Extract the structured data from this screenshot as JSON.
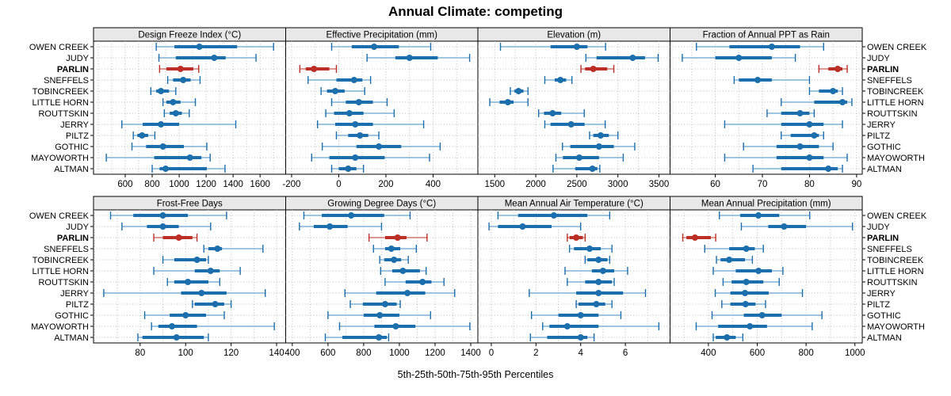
{
  "title": "Annual Climate: competing",
  "caption": "5th-25th-50th-75th-95th Percentiles",
  "stations": [
    "OWEN CREEK",
    "JUDY",
    "PARLIN",
    "SNEFFELS",
    "TOBINCREEK",
    "LITTLE HORN",
    "ROUTTSKIN",
    "JERRY",
    "PILTZ",
    "GOTHIC",
    "MAYOWORTH",
    "ALTMAN"
  ],
  "highlight_station": "PARLIN",
  "colors": {
    "blue": "#1c6fad",
    "blue_light": "#7fb3d6",
    "red": "#bb2f26",
    "red_light": "#d4766f",
    "header_bg": "#e8e8e8",
    "grid": "#bdbdbd",
    "border": "#000000"
  },
  "chart_data": {
    "type": "dotplot-percentiles",
    "percentiles": [
      5,
      25,
      50,
      75,
      95
    ],
    "grid": "dotted",
    "legend_position": "none",
    "panels": [
      {
        "title": "Design Freeze Index (°C)",
        "row": 0,
        "col": 0,
        "xlim": [
          365,
          1790
        ],
        "ticks": [
          600,
          800,
          1000,
          1200,
          1400,
          1600
        ],
        "grid_step": 100,
        "values": [
          [
            830,
            965,
            1150,
            1430,
            1700
          ],
          [
            850,
            975,
            1260,
            1345,
            1570
          ],
          [
            855,
            905,
            1010,
            1105,
            1145
          ],
          [
            915,
            955,
            1030,
            1085,
            1155
          ],
          [
            790,
            830,
            865,
            925,
            975
          ],
          [
            880,
            905,
            955,
            1010,
            1120
          ],
          [
            890,
            930,
            975,
            1020,
            1075
          ],
          [
            575,
            730,
            865,
            1000,
            1420
          ],
          [
            660,
            690,
            725,
            770,
            820
          ],
          [
            650,
            755,
            880,
            1035,
            1205
          ],
          [
            460,
            815,
            1080,
            1165,
            1230
          ],
          [
            800,
            855,
            900,
            1205,
            1340
          ]
        ]
      },
      {
        "title": "Effective Precipitation (mm)",
        "row": 0,
        "col": 1,
        "xlim": [
          -225,
          590
        ],
        "ticks": [
          -200,
          0,
          200,
          400
        ],
        "grid_step": 100,
        "values": [
          [
            -30,
            55,
            150,
            255,
            390
          ],
          [
            120,
            240,
            300,
            420,
            555
          ],
          [
            -165,
            -140,
            -105,
            -40,
            -10
          ],
          [
            -130,
            -10,
            65,
            100,
            135
          ],
          [
            -75,
            -50,
            -15,
            25,
            110
          ],
          [
            -30,
            30,
            85,
            145,
            205
          ],
          [
            -55,
            -20,
            45,
            105,
            235
          ],
          [
            -90,
            -15,
            70,
            145,
            360
          ],
          [
            -10,
            40,
            90,
            125,
            170
          ],
          [
            -70,
            75,
            170,
            265,
            430
          ],
          [
            -115,
            -40,
            70,
            195,
            385
          ],
          [
            -30,
            0,
            40,
            75,
            105
          ]
        ]
      },
      {
        "title": "Elevation (m)",
        "row": 0,
        "col": 2,
        "xlim": [
          1295,
          3635
        ],
        "ticks": [
          1500,
          2000,
          2500,
          3000,
          3500
        ],
        "grid_step": 250,
        "values": [
          [
            1570,
            2180,
            2500,
            2630,
            2850
          ],
          [
            2610,
            2740,
            3180,
            3330,
            3490
          ],
          [
            2550,
            2600,
            2700,
            2870,
            2950
          ],
          [
            2110,
            2230,
            2300,
            2370,
            2440
          ],
          [
            1690,
            1740,
            1790,
            1850,
            1905
          ],
          [
            1440,
            1560,
            1660,
            1730,
            1905
          ],
          [
            2035,
            2100,
            2205,
            2310,
            2590
          ],
          [
            2110,
            2180,
            2430,
            2595,
            2845
          ],
          [
            2655,
            2700,
            2790,
            2890,
            3000
          ],
          [
            2325,
            2420,
            2770,
            2950,
            3205
          ],
          [
            2245,
            2330,
            2530,
            2770,
            3065
          ],
          [
            2210,
            2480,
            2690,
            2750,
            2780
          ]
        ]
      },
      {
        "title": "Fraction of Annual PPT as Rain",
        "row": 0,
        "col": 3,
        "xlim": [
          50.4,
          91.2
        ],
        "ticks": [
          60,
          70,
          80,
          90
        ],
        "grid_step": 5,
        "values": [
          [
            56,
            63,
            72,
            78,
            83
          ],
          [
            53,
            60,
            65,
            72,
            77
          ],
          [
            82,
            84,
            86,
            87,
            88
          ],
          [
            64,
            65,
            69,
            72,
            80
          ],
          [
            80,
            82,
            85,
            86,
            87
          ],
          [
            74,
            81,
            87,
            88,
            89
          ],
          [
            71,
            74,
            78,
            80,
            81
          ],
          [
            62,
            74,
            80,
            83,
            87
          ],
          [
            74,
            76,
            81,
            82,
            83
          ],
          [
            66,
            73,
            78,
            82,
            85
          ],
          [
            62,
            73,
            80,
            83,
            88
          ],
          [
            68,
            74,
            84,
            86,
            87
          ]
        ]
      },
      {
        "title": "Frost-Free Days",
        "row": 1,
        "col": 0,
        "xlim": [
          59.5,
          144
        ],
        "ticks": [
          80,
          100,
          120,
          140
        ],
        "grid_step": 10,
        "values": [
          [
            67,
            77,
            90,
            101,
            118
          ],
          [
            72,
            83,
            90,
            97,
            111
          ],
          [
            86,
            90,
            97,
            103,
            105
          ],
          [
            108,
            110,
            114,
            116,
            134
          ],
          [
            90,
            95,
            105,
            109,
            110
          ],
          [
            86,
            104,
            111,
            115,
            124
          ],
          [
            92,
            95,
            101,
            110,
            115
          ],
          [
            64,
            98,
            107,
            118,
            135
          ],
          [
            103,
            104,
            113,
            117,
            120
          ],
          [
            82,
            93,
            100,
            109,
            117
          ],
          [
            85,
            88,
            94,
            105,
            139
          ],
          [
            79,
            81,
            96,
            108,
            110
          ]
        ]
      },
      {
        "title": "Growing Degree Days (°C)",
        "row": 1,
        "col": 1,
        "xlim": [
          363,
          1440
        ],
        "ticks": [
          400,
          600,
          800,
          1000,
          1200,
          1400
        ],
        "grid_step": 100,
        "values": [
          [
            465,
            565,
            730,
            915,
            1060
          ],
          [
            440,
            520,
            610,
            710,
            900
          ],
          [
            830,
            920,
            990,
            1040,
            1155
          ],
          [
            855,
            920,
            955,
            1005,
            1095
          ],
          [
            890,
            915,
            970,
            1010,
            1050
          ],
          [
            895,
            960,
            1020,
            1115,
            1150
          ],
          [
            920,
            1035,
            1130,
            1180,
            1250
          ],
          [
            695,
            870,
            1045,
            1145,
            1310
          ],
          [
            725,
            795,
            920,
            985,
            1005
          ],
          [
            600,
            800,
            890,
            1000,
            1175
          ],
          [
            665,
            860,
            980,
            1090,
            1395
          ],
          [
            585,
            680,
            885,
            930,
            940
          ]
        ]
      },
      {
        "title": "Mean Annual Air Temperature (°C)",
        "row": 1,
        "col": 2,
        "xlim": [
          -0.6,
          8.0
        ],
        "ticks": [
          0,
          2,
          4,
          6
        ],
        "grid_step": 1,
        "values": [
          [
            0.3,
            1.2,
            2.8,
            4.3,
            5.3
          ],
          [
            -0.1,
            0.3,
            1.4,
            2.7,
            4.0
          ],
          [
            3.4,
            3.5,
            3.8,
            4.1,
            4.2
          ],
          [
            3.5,
            3.7,
            4.4,
            4.9,
            5.4
          ],
          [
            4.2,
            4.3,
            4.8,
            5.2,
            5.3
          ],
          [
            3.3,
            4.5,
            5.0,
            5.5,
            6.1
          ],
          [
            3.4,
            4.2,
            4.8,
            5.4,
            5.5
          ],
          [
            1.7,
            3.8,
            4.8,
            5.9,
            6.9
          ],
          [
            3.8,
            3.9,
            4.7,
            5.1,
            5.4
          ],
          [
            1.8,
            3.0,
            4.0,
            4.8,
            5.8
          ],
          [
            2.3,
            2.6,
            3.4,
            4.8,
            7.5
          ],
          [
            1.75,
            2.5,
            4.0,
            4.3,
            4.6
          ]
        ]
      },
      {
        "title": "Mean Annual Precipitation (mm)",
        "row": 1,
        "col": 3,
        "xlim": [
          243,
          1030
        ],
        "ticks": [
          400,
          600,
          800,
          1000
        ],
        "grid_step": 100,
        "values": [
          [
            445,
            530,
            605,
            690,
            815
          ],
          [
            535,
            645,
            710,
            800,
            990
          ],
          [
            295,
            310,
            345,
            410,
            430
          ],
          [
            385,
            485,
            555,
            590,
            625
          ],
          [
            433,
            450,
            485,
            550,
            580
          ],
          [
            420,
            512,
            605,
            660,
            705
          ],
          [
            460,
            495,
            555,
            625,
            690
          ],
          [
            428,
            490,
            550,
            647,
            785
          ],
          [
            455,
            490,
            552,
            593,
            634
          ],
          [
            415,
            545,
            620,
            700,
            865
          ],
          [
            350,
            440,
            570,
            640,
            825
          ],
          [
            420,
            430,
            476,
            512,
            541
          ]
        ]
      }
    ]
  }
}
